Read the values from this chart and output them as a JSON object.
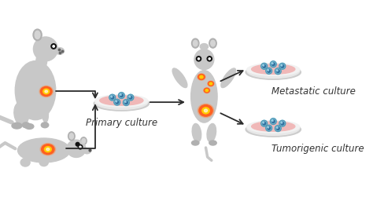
{
  "bg_color": "#ffffff",
  "mouse_color": "#c8c8c8",
  "mouse_dark": "#b0b0b0",
  "tumor_red": "#e03010",
  "tumor_orange": "#ff6020",
  "tumor_yellow": "#ffcc00",
  "petri_rim": "#d8d8d8",
  "petri_body": "#e8e8e8",
  "petri_liquid": "#f0b8b8",
  "cell_blue": "#6ab8d0",
  "cell_dark": "#3070a0",
  "arrow_color": "#2a2a2a",
  "text_color": "#333333",
  "label_primary": "Primary culture",
  "label_metastatic": "Metastatic culture",
  "label_tumorigenic": "Tumorigenic culture",
  "font_size_label": 8.5
}
